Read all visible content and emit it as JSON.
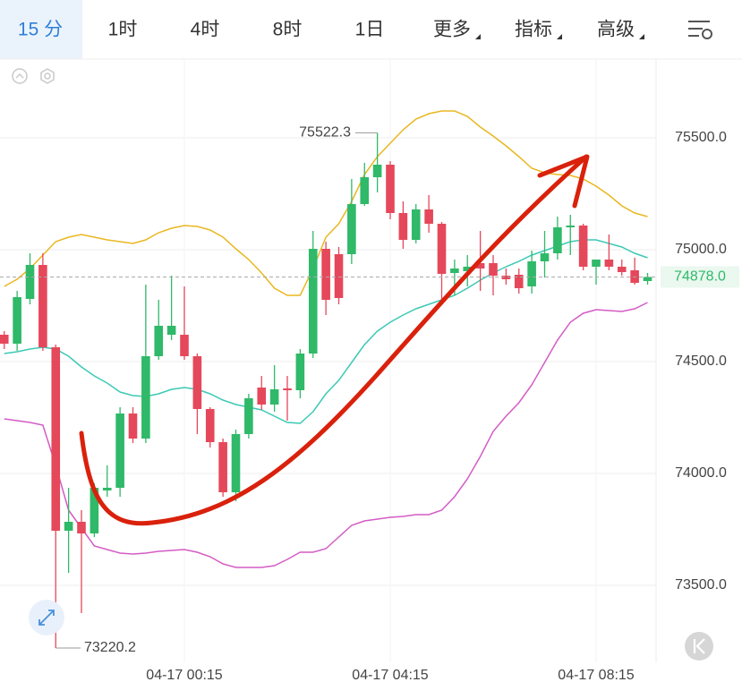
{
  "tabs": [
    "15 分",
    "1时",
    "4时",
    "8时",
    "1日",
    "更多",
    "指标",
    "高级"
  ],
  "chart_data": {
    "type": "candlestick",
    "categories": [
      null,
      null,
      null,
      null,
      null,
      null,
      null,
      null,
      null,
      null,
      null,
      null,
      null,
      null,
      "04-17 00:15",
      null,
      null,
      null,
      null,
      null,
      null,
      null,
      null,
      null,
      null,
      null,
      null,
      null,
      null,
      null,
      "04-17 04:15",
      null,
      null,
      null,
      null,
      null,
      null,
      null,
      null,
      null,
      null,
      null,
      null,
      null,
      null,
      null,
      "04-17 08:15",
      null,
      null,
      null,
      null
    ],
    "open": [
      74620,
      74580,
      74780,
      74932,
      74564,
      73744,
      73784,
      73732,
      73924,
      73936,
      74268,
      74156,
      74524,
      74620,
      74620,
      74524,
      74288,
      74140,
      73916,
      74176,
      74384,
      74308,
      74380,
      74372,
      74536,
      75004,
      74980,
      74980,
      75204,
      75324,
      75380,
      75164,
      75044,
      75180,
      75116,
      74896,
      74904,
      74940,
      74940,
      74884,
      74888,
      74836,
      74948,
      74984,
      75100,
      75108,
      74924,
      74956,
      74924,
      74908,
      74860
    ],
    "high": [
      74636,
      74816,
      74984,
      74984,
      74576,
      73936,
      73836,
      73956,
      74036,
      74296,
      74296,
      74844,
      74776,
      74884,
      74836,
      74536,
      74296,
      74156,
      74196,
      74356,
      74436,
      74484,
      74436,
      74556,
      75084,
      75036,
      75012,
      75316,
      75388,
      75522.3,
      75396,
      75216,
      75204,
      75244,
      75124,
      74956,
      74976,
      75084,
      74976,
      74916,
      74916,
      74996,
      75084,
      75148,
      75156,
      75116,
      74956,
      75068,
      74956,
      74964,
      74896
    ],
    "low": [
      74556,
      74548,
      74756,
      74548,
      73220.2,
      73556,
      73376,
      73716,
      73896,
      73896,
      74136,
      74136,
      74508,
      74596,
      74508,
      74176,
      74116,
      73896,
      73876,
      74156,
      74284,
      74276,
      74236,
      74336,
      74516,
      74708,
      74756,
      74936,
      75196,
      75256,
      75136,
      75004,
      75028,
      75076,
      74756,
      74796,
      74836,
      74816,
      74796,
      74844,
      74804,
      74804,
      74876,
      74956,
      74976,
      74908,
      74844,
      74908,
      74884,
      74844,
      74844
    ],
    "close": [
      74580,
      74788,
      74932,
      74564,
      73744,
      73784,
      73732,
      73936,
      73936,
      74268,
      74156,
      74524,
      74660,
      74660,
      74524,
      74288,
      74140,
      73916,
      74176,
      74336,
      74308,
      74376,
      74372,
      74536,
      75004,
      74776,
      74784,
      75204,
      75324,
      75380,
      75164,
      75044,
      75180,
      75116,
      74892,
      74916,
      74924,
      74916,
      74884,
      74868,
      74828,
      74948,
      74984,
      75100,
      75108,
      74924,
      74956,
      74924,
      74900,
      74852,
      74878
    ],
    "up_color": "#2fb969",
    "down_color": "#e5485a",
    "lines": [
      {
        "color": "#e9b720",
        "values": [
          74836,
          74868,
          74916,
          74976,
          75036,
          75056,
          75068,
          75056,
          75044,
          75036,
          75028,
          75044,
          75076,
          75096,
          75108,
          75104,
          75088,
          75056,
          75004,
          74956,
          74896,
          74828,
          74796,
          74796,
          74916,
          75056,
          75116,
          75216,
          75336,
          75416,
          75476,
          75536,
          75584,
          75608,
          75620,
          75620,
          75596,
          75548,
          75508,
          75464,
          75416,
          75364,
          75344,
          75336,
          75332,
          75316,
          75284,
          75244,
          75196,
          75164,
          75148
        ]
      },
      {
        "color": "#3cc9b4",
        "values": [
          74536,
          74544,
          74556,
          74564,
          74556,
          74524,
          74476,
          74436,
          74404,
          74364,
          74348,
          74344,
          74356,
          74376,
          74384,
          74376,
          74356,
          74328,
          74308,
          74296,
          74284,
          74256,
          74228,
          74224,
          74276,
          74356,
          74416,
          74496,
          74576,
          74636,
          74676,
          74708,
          74736,
          74756,
          74776,
          74796,
          74828,
          74864,
          74896,
          74924,
          74948,
          74976,
          74996,
          75016,
          75036,
          75044,
          75044,
          75028,
          75012,
          74984,
          74964
        ]
      },
      {
        "color": "#d45cc4",
        "values": [
          74244,
          74236,
          74228,
          74216,
          74036,
          73836,
          73756,
          73676,
          73660,
          73644,
          73640,
          73644,
          73652,
          73656,
          73660,
          73648,
          73628,
          73596,
          73580,
          73580,
          73580,
          73588,
          73616,
          73648,
          73648,
          73664,
          73716,
          73768,
          73788,
          73796,
          73804,
          73808,
          73816,
          73816,
          73836,
          73896,
          73976,
          74076,
          74188,
          74256,
          74316,
          74396,
          74496,
          74596,
          74676,
          74716,
          74732,
          74728,
          74724,
          74736,
          74764
        ]
      }
    ],
    "last_price": {
      "value": 74878,
      "label": "74878.0"
    },
    "ylim": [
      73156,
      75852
    ],
    "yticks": [
      {
        "value": 73500,
        "label": "73500.0"
      },
      {
        "value": 74000,
        "label": "74000.0"
      },
      {
        "value": 74500,
        "label": "74500.0"
      },
      {
        "value": 75000,
        "label": "75000.0"
      },
      {
        "value": 75500,
        "label": "75500.0"
      }
    ],
    "grid": true
  }
}
